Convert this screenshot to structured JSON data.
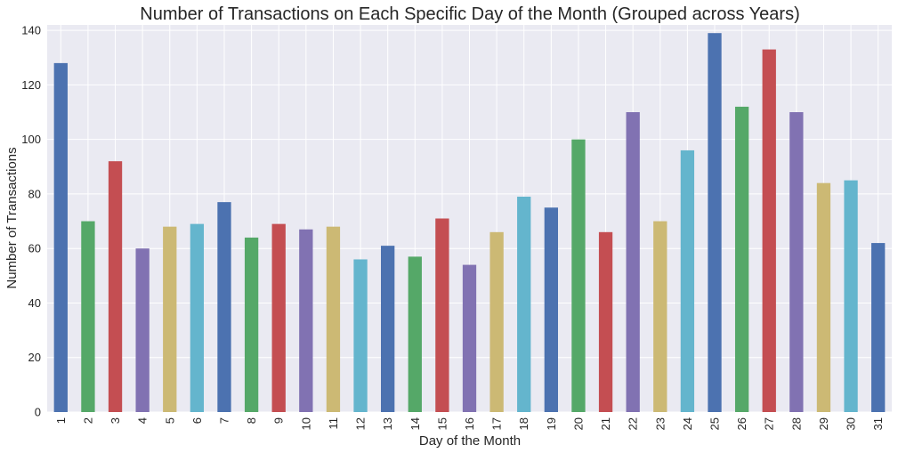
{
  "chart_data": {
    "type": "bar",
    "title": "Number of Transactions on Each Specific Day of the Month (Grouped across Years)",
    "xlabel": "Day of the Month",
    "ylabel": "Number of Transactions",
    "categories": [
      "1",
      "2",
      "3",
      "4",
      "5",
      "6",
      "7",
      "8",
      "9",
      "10",
      "11",
      "12",
      "13",
      "14",
      "15",
      "16",
      "17",
      "18",
      "19",
      "20",
      "21",
      "22",
      "23",
      "24",
      "25",
      "26",
      "27",
      "28",
      "29",
      "30",
      "31"
    ],
    "values": [
      128,
      70,
      92,
      60,
      68,
      69,
      77,
      64,
      69,
      67,
      68,
      56,
      61,
      57,
      71,
      54,
      66,
      79,
      75,
      100,
      66,
      110,
      70,
      96,
      139,
      112,
      133,
      110,
      84,
      85,
      62
    ],
    "ylim": [
      0,
      142
    ],
    "yticks": [
      0,
      20,
      40,
      60,
      80,
      100,
      120,
      140
    ],
    "colors": [
      "#4c72b0",
      "#55a868",
      "#c44e52",
      "#8172b2",
      "#ccb974",
      "#64b5cd"
    ],
    "background": "#eaeaf2",
    "grid": true,
    "legend": "none"
  }
}
